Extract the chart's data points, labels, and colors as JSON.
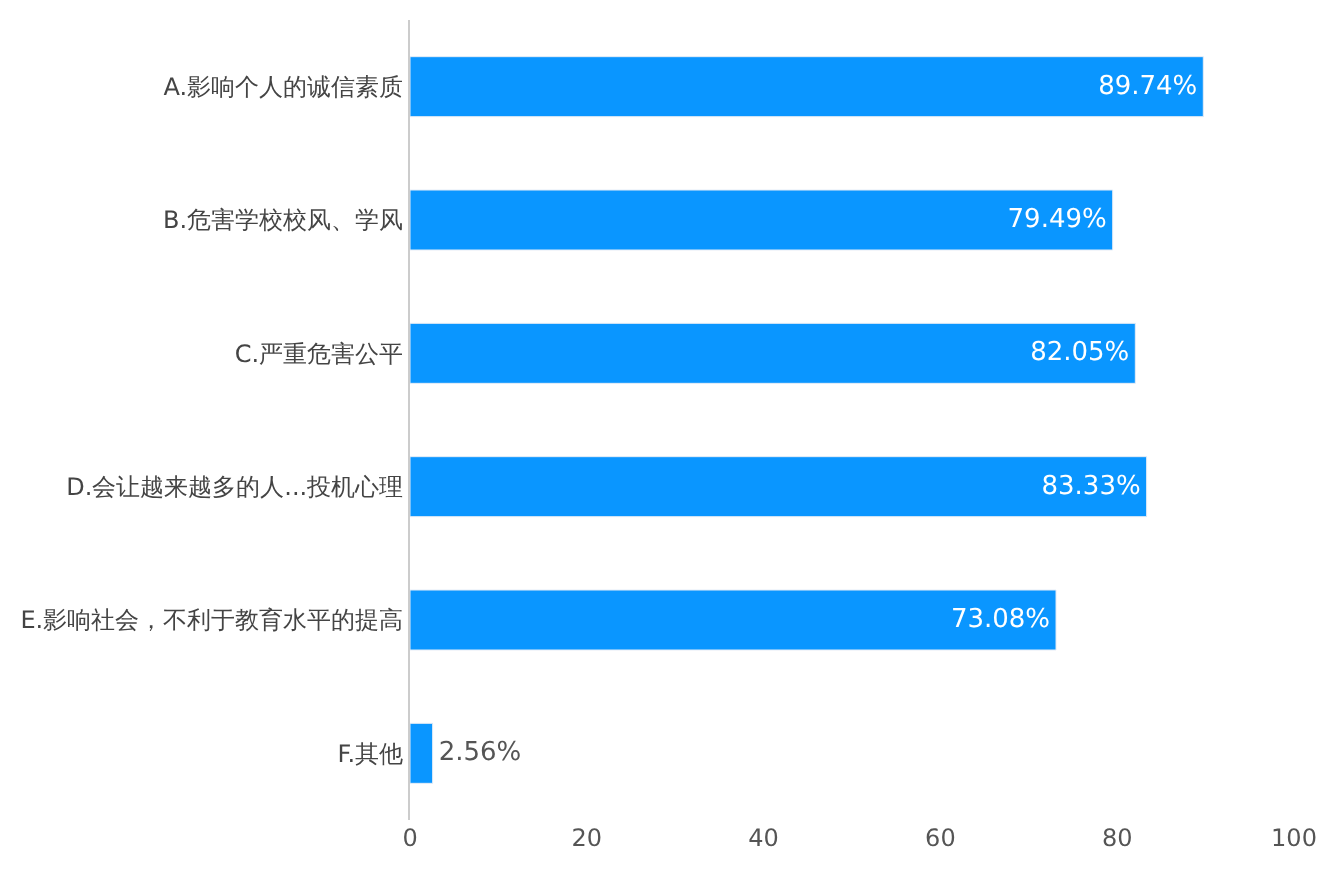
{
  "chart_data": {
    "type": "bar",
    "orientation": "horizontal",
    "categories": [
      "A.影响个人的诚信素质",
      "B.危害学校校风、学风",
      "C.严重危害公平",
      "D.会让越来越多的人...投机心理",
      "E.影响社会，不利于教育水平的提高",
      "F.其他"
    ],
    "values": [
      89.74,
      79.49,
      82.05,
      83.33,
      73.08,
      2.56
    ],
    "value_labels": [
      "89.74%",
      "79.49%",
      "82.05%",
      "83.33%",
      "73.08%",
      "2.56%"
    ],
    "color": "#0a96ff",
    "xlim": [
      0,
      100
    ],
    "xticks": [
      0,
      20,
      40,
      60,
      80,
      100
    ],
    "legend": false
  }
}
